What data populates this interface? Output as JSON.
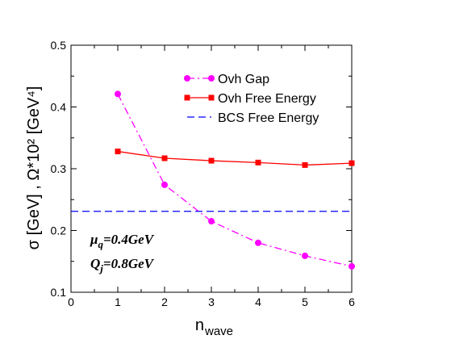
{
  "chart_data": {
    "type": "line",
    "xlabel": "n",
    "xlabel_sub": "wave",
    "ylabel": "σ [GeV]   ,  Ω*10² [GeV⁴]",
    "xlim": [
      0,
      6
    ],
    "ylim": [
      0.1,
      0.5
    ],
    "x_ticks": [
      "0",
      "1",
      "2",
      "3",
      "4",
      "5",
      "6"
    ],
    "y_ticks": [
      "0.1",
      "0.2",
      "0.3",
      "0.4",
      "0.5"
    ],
    "grid": false,
    "legend_position": "top-right",
    "series": [
      {
        "name": "Ovh Gap",
        "color": "#ff00ff",
        "style": "dash-dot",
        "marker": "circle",
        "x": [
          1,
          2,
          3,
          4,
          5,
          6
        ],
        "y": [
          0.421,
          0.274,
          0.215,
          0.18,
          0.159,
          0.142
        ]
      },
      {
        "name": "Ovh Free Energy",
        "color": "#ff0000",
        "style": "solid",
        "marker": "square",
        "x": [
          1,
          2,
          3,
          4,
          5,
          6
        ],
        "y": [
          0.328,
          0.317,
          0.313,
          0.31,
          0.306,
          0.309
        ]
      },
      {
        "name": "BCS Free Energy",
        "color": "#0000ff",
        "style": "dashed",
        "marker": "none",
        "x": [
          0,
          6
        ],
        "y": [
          0.231,
          0.231
        ]
      }
    ],
    "annotations": [
      {
        "symbol": "μ",
        "sub": "q",
        "rest": "=0.4GeV"
      },
      {
        "symbol": "Q",
        "sub": "j",
        "rest": "=0.8GeV"
      }
    ]
  }
}
